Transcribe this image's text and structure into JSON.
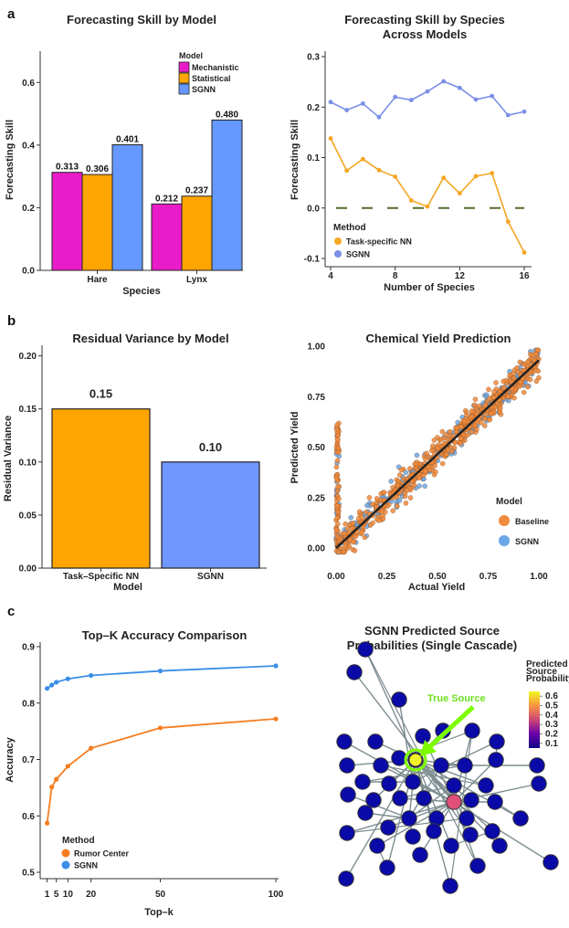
{
  "panels": [
    "a",
    "b",
    "c"
  ],
  "chart_data": [
    {
      "id": "a-left",
      "type": "bar",
      "title": "Forecasting Skill by Model",
      "xlabel": "Species",
      "ylabel": "Forecasting Skill",
      "categories": [
        "Hare",
        "Lynx"
      ],
      "ylim": [
        0,
        0.7
      ],
      "yticks": [
        0.0,
        0.2,
        0.4,
        0.6
      ],
      "ytick_labels": [
        "0.0",
        "0.2",
        "0.4",
        "0.6"
      ],
      "legend_title": "Model",
      "series": [
        {
          "name": "Mechanistic",
          "color": "#e81cc8",
          "values": [
            0.313,
            0.212
          ],
          "labels": [
            "0.313",
            "0.212"
          ]
        },
        {
          "name": "Statistical",
          "color": "#ffa500",
          "values": [
            0.306,
            0.237
          ],
          "labels": [
            "0.306",
            "0.237"
          ]
        },
        {
          "name": "SGNN",
          "color": "#6699ff",
          "values": [
            0.401,
            0.48
          ],
          "labels": [
            "0.401",
            "0.480"
          ]
        }
      ]
    },
    {
      "id": "a-right",
      "type": "line",
      "title": "Forecasting Skill by Species",
      "subtitle": "Across Models",
      "xlabel": "Number of Species",
      "ylabel": "Forecasting Skill",
      "xlim": [
        4,
        16
      ],
      "ylim": [
        -0.1,
        0.3
      ],
      "xticks": [
        4,
        8,
        12,
        16
      ],
      "yticks": [
        -0.1,
        0.0,
        0.1,
        0.2,
        0.3
      ],
      "ytick_labels": [
        "-0.1",
        "0.0",
        "0.1",
        "0.2",
        "0.3"
      ],
      "legend_title": "Method",
      "x": [
        4,
        5,
        6,
        7,
        8,
        9,
        10,
        11,
        12,
        13,
        14,
        15,
        16
      ],
      "series": [
        {
          "name": "Task-specific NN",
          "color": "#f5a623",
          "values": [
            0.138,
            0.074,
            0.097,
            0.075,
            0.062,
            0.015,
            0.003,
            0.06,
            0.029,
            0.063,
            0.069,
            -0.027,
            -0.088
          ]
        },
        {
          "name": "SGNN",
          "color": "#7b8fe6",
          "values": [
            0.21,
            0.194,
            0.207,
            0.18,
            0.22,
            0.214,
            0.231,
            0.251,
            0.238,
            0.215,
            0.222,
            0.184,
            0.191
          ]
        }
      ],
      "reference_line": {
        "value": 0.0,
        "color": "#556b2f",
        "style": "dashed"
      }
    },
    {
      "id": "b-left",
      "type": "bar",
      "title": "Residual Variance by Model",
      "xlabel": "Model",
      "ylabel": "Residual Variance",
      "categories": [
        "Task–Specific NN",
        "SGNN"
      ],
      "values": [
        0.15,
        0.1
      ],
      "labels": [
        "0.15",
        "0.10"
      ],
      "colors": [
        "#ffa500",
        "#6f97ff"
      ],
      "ylim": [
        0,
        0.21
      ],
      "yticks": [
        0.0,
        0.05,
        0.1,
        0.15,
        0.2
      ],
      "ytick_labels": [
        "0.00",
        "0.05",
        "0.10",
        "0.15",
        "0.20"
      ]
    },
    {
      "id": "b-right",
      "type": "scatter",
      "title": "Chemical Yield Prediction",
      "xlabel": "Actual Yield",
      "ylabel": "Predicted Yield",
      "xlim": [
        0,
        1
      ],
      "ylim": [
        0,
        1
      ],
      "xticks": [
        0.0,
        0.25,
        0.5,
        0.75,
        1.0
      ],
      "xtick_labels": [
        "0.00",
        "0.25",
        "0.50",
        "0.75",
        "1.00"
      ],
      "yticks": [
        0.0,
        0.25,
        0.5,
        0.75,
        1.0
      ],
      "ytick_labels": [
        "0.00",
        "0.25",
        "0.50",
        "0.75",
        "1.00"
      ],
      "legend_title": "Model",
      "series": [
        {
          "name": "Baseline",
          "color": "#f08a3c"
        },
        {
          "name": "SGNN",
          "color": "#6aa7e8"
        }
      ],
      "fit_line": {
        "x": [
          0,
          1
        ],
        "y": [
          0,
          0.93
        ],
        "color": "#222222"
      }
    },
    {
      "id": "c-left",
      "type": "line",
      "title": "Top–K Accuracy Comparison",
      "xlabel": "Top–k",
      "ylabel": "Accuracy",
      "xlim": [
        -2,
        100
      ],
      "ylim": [
        0.5,
        0.9
      ],
      "xticks": [
        1,
        5,
        10,
        20,
        50,
        100
      ],
      "xtick_labels": [
        "1",
        "5",
        "10",
        "20",
        "50",
        "100"
      ],
      "yticks": [
        0.5,
        0.6,
        0.7,
        0.8,
        0.9
      ],
      "ytick_labels": [
        "0.5",
        "0.6",
        "0.7",
        "0.8",
        "0.9"
      ],
      "legend_title": "Method",
      "x": [
        1,
        3,
        5,
        10,
        20,
        50,
        100
      ],
      "series": [
        {
          "name": "Rumor Center",
          "color": "#f57d20",
          "values": [
            0.587,
            0.651,
            0.665,
            0.688,
            0.72,
            0.756,
            0.772
          ]
        },
        {
          "name": "SGNN",
          "color": "#3a8ee6",
          "values": [
            0.826,
            0.832,
            0.837,
            0.843,
            0.849,
            0.857,
            0.866
          ]
        }
      ]
    },
    {
      "id": "c-right",
      "type": "network",
      "title": "SGNN Predicted Source",
      "subtitle": "Probabilities (Single Cascade)",
      "annotation": "True Source",
      "colorbar": {
        "title": [
          "Predicted",
          "Source",
          "Probability"
        ],
        "ticks": [
          "0.6",
          "0.5",
          "0.4",
          "0.3",
          "0.2",
          "0.1"
        ],
        "range": [
          0.05,
          0.65
        ]
      },
      "node_probabilities": {
        "default": 0.02,
        "true_source": 0.6,
        "second": 0.4
      },
      "colors": {
        "low": "#0a0aa8",
        "mid": "#e05078",
        "high": "#f2f22a",
        "highlight": "#7cfc00",
        "edge": "#7d8d91"
      }
    }
  ]
}
